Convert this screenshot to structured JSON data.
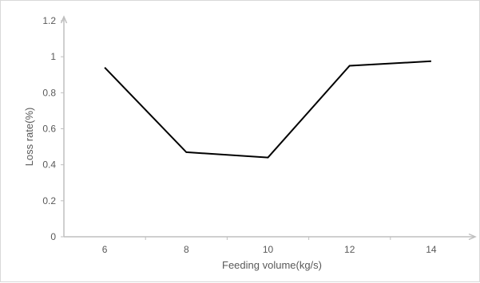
{
  "chart_data": {
    "type": "line",
    "title": "",
    "xlabel": "Feeding volume(kg/s)",
    "ylabel": "Loss rate(%)",
    "x_ticks": [
      "6",
      "8",
      "10",
      "12",
      "14"
    ],
    "y_ticks": [
      "0",
      "0.2",
      "0.4",
      "0.6",
      "0.8",
      "1",
      "1.2"
    ],
    "xlim": [
      5,
      15
    ],
    "ylim": [
      0,
      1.2
    ],
    "grid": false,
    "legend": "none",
    "series": [
      {
        "x": [
          6,
          8,
          10,
          12,
          14
        ],
        "y": [
          0.94,
          0.47,
          0.44,
          0.95,
          0.975
        ],
        "color": "#000000"
      }
    ],
    "colors": {
      "axis": "#bfbfbf",
      "text": "#595959",
      "line": "#000000"
    }
  }
}
